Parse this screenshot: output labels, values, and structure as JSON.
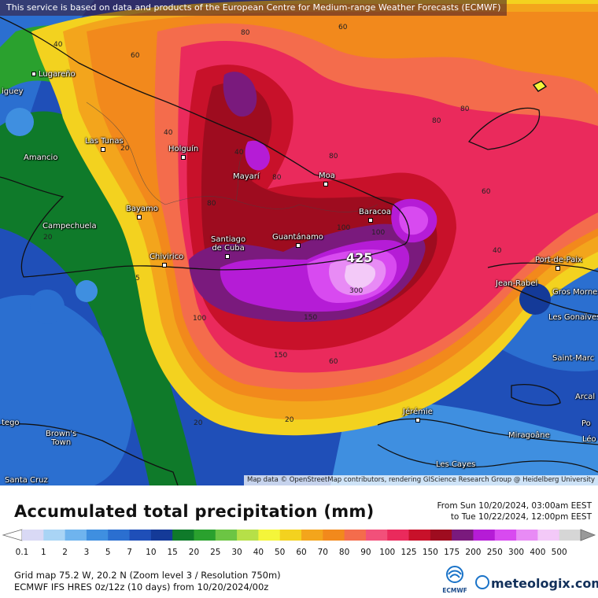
{
  "map": {
    "notice": "This service is based on data and products of the European Centre for Medium-range Weather Forecasts (ECMWF)",
    "attribution": "Map data © OpenStreetMap contributors, rendering GIScience Research Group @ Heidelberg University",
    "cities": [
      {
        "name": "Lugareño",
        "id": "lugareno"
      },
      {
        "name": "iguey",
        "id": "iguey"
      },
      {
        "name": "Las Tunas",
        "id": "las-tunas"
      },
      {
        "name": "Holguín",
        "id": "holguin"
      },
      {
        "name": "Amancio",
        "id": "amancio"
      },
      {
        "name": "Mayarí",
        "id": "mayari"
      },
      {
        "name": "Moa",
        "id": "moa"
      },
      {
        "name": "Bayamo",
        "id": "bayamo"
      },
      {
        "name": "Baracoa",
        "id": "baracoa"
      },
      {
        "name": "Campechuela",
        "id": "campechuela"
      },
      {
        "name": "Santiago\nde Cuba",
        "id": "santiago-de-cuba"
      },
      {
        "name": "Guantánamo",
        "id": "guantanamo"
      },
      {
        "name": "Chivirico",
        "id": "chivirico"
      },
      {
        "name": "Port-de-Paix",
        "id": "port-de-paix"
      },
      {
        "name": "Jean-Rabel",
        "id": "jean-rabel"
      },
      {
        "name": "Gros Morne",
        "id": "gros-morne"
      },
      {
        "name": "Les Gonaïves",
        "id": "les-gonaives"
      },
      {
        "name": "Saint-Marc",
        "id": "saint-marc"
      },
      {
        "name": "Arcal",
        "id": "arcal"
      },
      {
        "name": "Jérémie",
        "id": "jeremie"
      },
      {
        "name": "Miragoâne",
        "id": "miragoane"
      },
      {
        "name": "Po",
        "id": "po"
      },
      {
        "name": "Léo",
        "id": "leo"
      },
      {
        "name": "tego",
        "id": "tego"
      },
      {
        "name": "Brown's\nTown",
        "id": "browns-town"
      },
      {
        "name": "Les Cayes",
        "id": "les-cayes"
      },
      {
        "name": "Santa Cruz",
        "id": "santa-cruz"
      }
    ],
    "contour_labels": [
      "80",
      "60",
      "40",
      "60",
      "80",
      "80",
      "80",
      "40",
      "20",
      "20",
      "40",
      "60",
      "80",
      "80",
      "100",
      "100",
      "150",
      "425",
      "300",
      "150",
      "100",
      "60",
      "40",
      "20",
      "20",
      "5"
    ],
    "max_label": "425"
  },
  "legend": {
    "title": "Accumulated total precipitation (mm)",
    "from": "From Sun 10/20/2024, 03:00am EEST",
    "to": "to Tue 10/22/2024, 12:00pm EEST",
    "ticks": [
      "0.1",
      "1",
      "2",
      "3",
      "5",
      "7",
      "10",
      "15",
      "20",
      "25",
      "30",
      "40",
      "50",
      "60",
      "70",
      "80",
      "90",
      "100",
      "125",
      "150",
      "175",
      "200",
      "250",
      "300",
      "400",
      "500"
    ],
    "colors": [
      "#d9d9f5",
      "#a9d4f5",
      "#6fb4ee",
      "#3f8fe0",
      "#2b6fd0",
      "#1f4fb8",
      "#143a98",
      "#0f7a2a",
      "#2aa12e",
      "#6cc544",
      "#b6e048",
      "#f4f53a",
      "#f3d21f",
      "#f3a51c",
      "#f2891c",
      "#f46c4c",
      "#f2507a",
      "#ea2a5c",
      "#c8112a",
      "#9e0c1f",
      "#7a1a7d",
      "#b51cd6",
      "#d84af0",
      "#e88bf5",
      "#f3c9f8",
      "#d6d6d6"
    ],
    "colors_note": ""
  },
  "meta": {
    "grid": "Grid map 75.2 W, 20.2 N (Zoom level 3 / Resolution 750m)",
    "model": "ECMWF IFS HRES 0z/12z (10 days) from 10/20/2024/00z",
    "ecmwf": "ECMWF",
    "brand": "meteologix.com"
  }
}
